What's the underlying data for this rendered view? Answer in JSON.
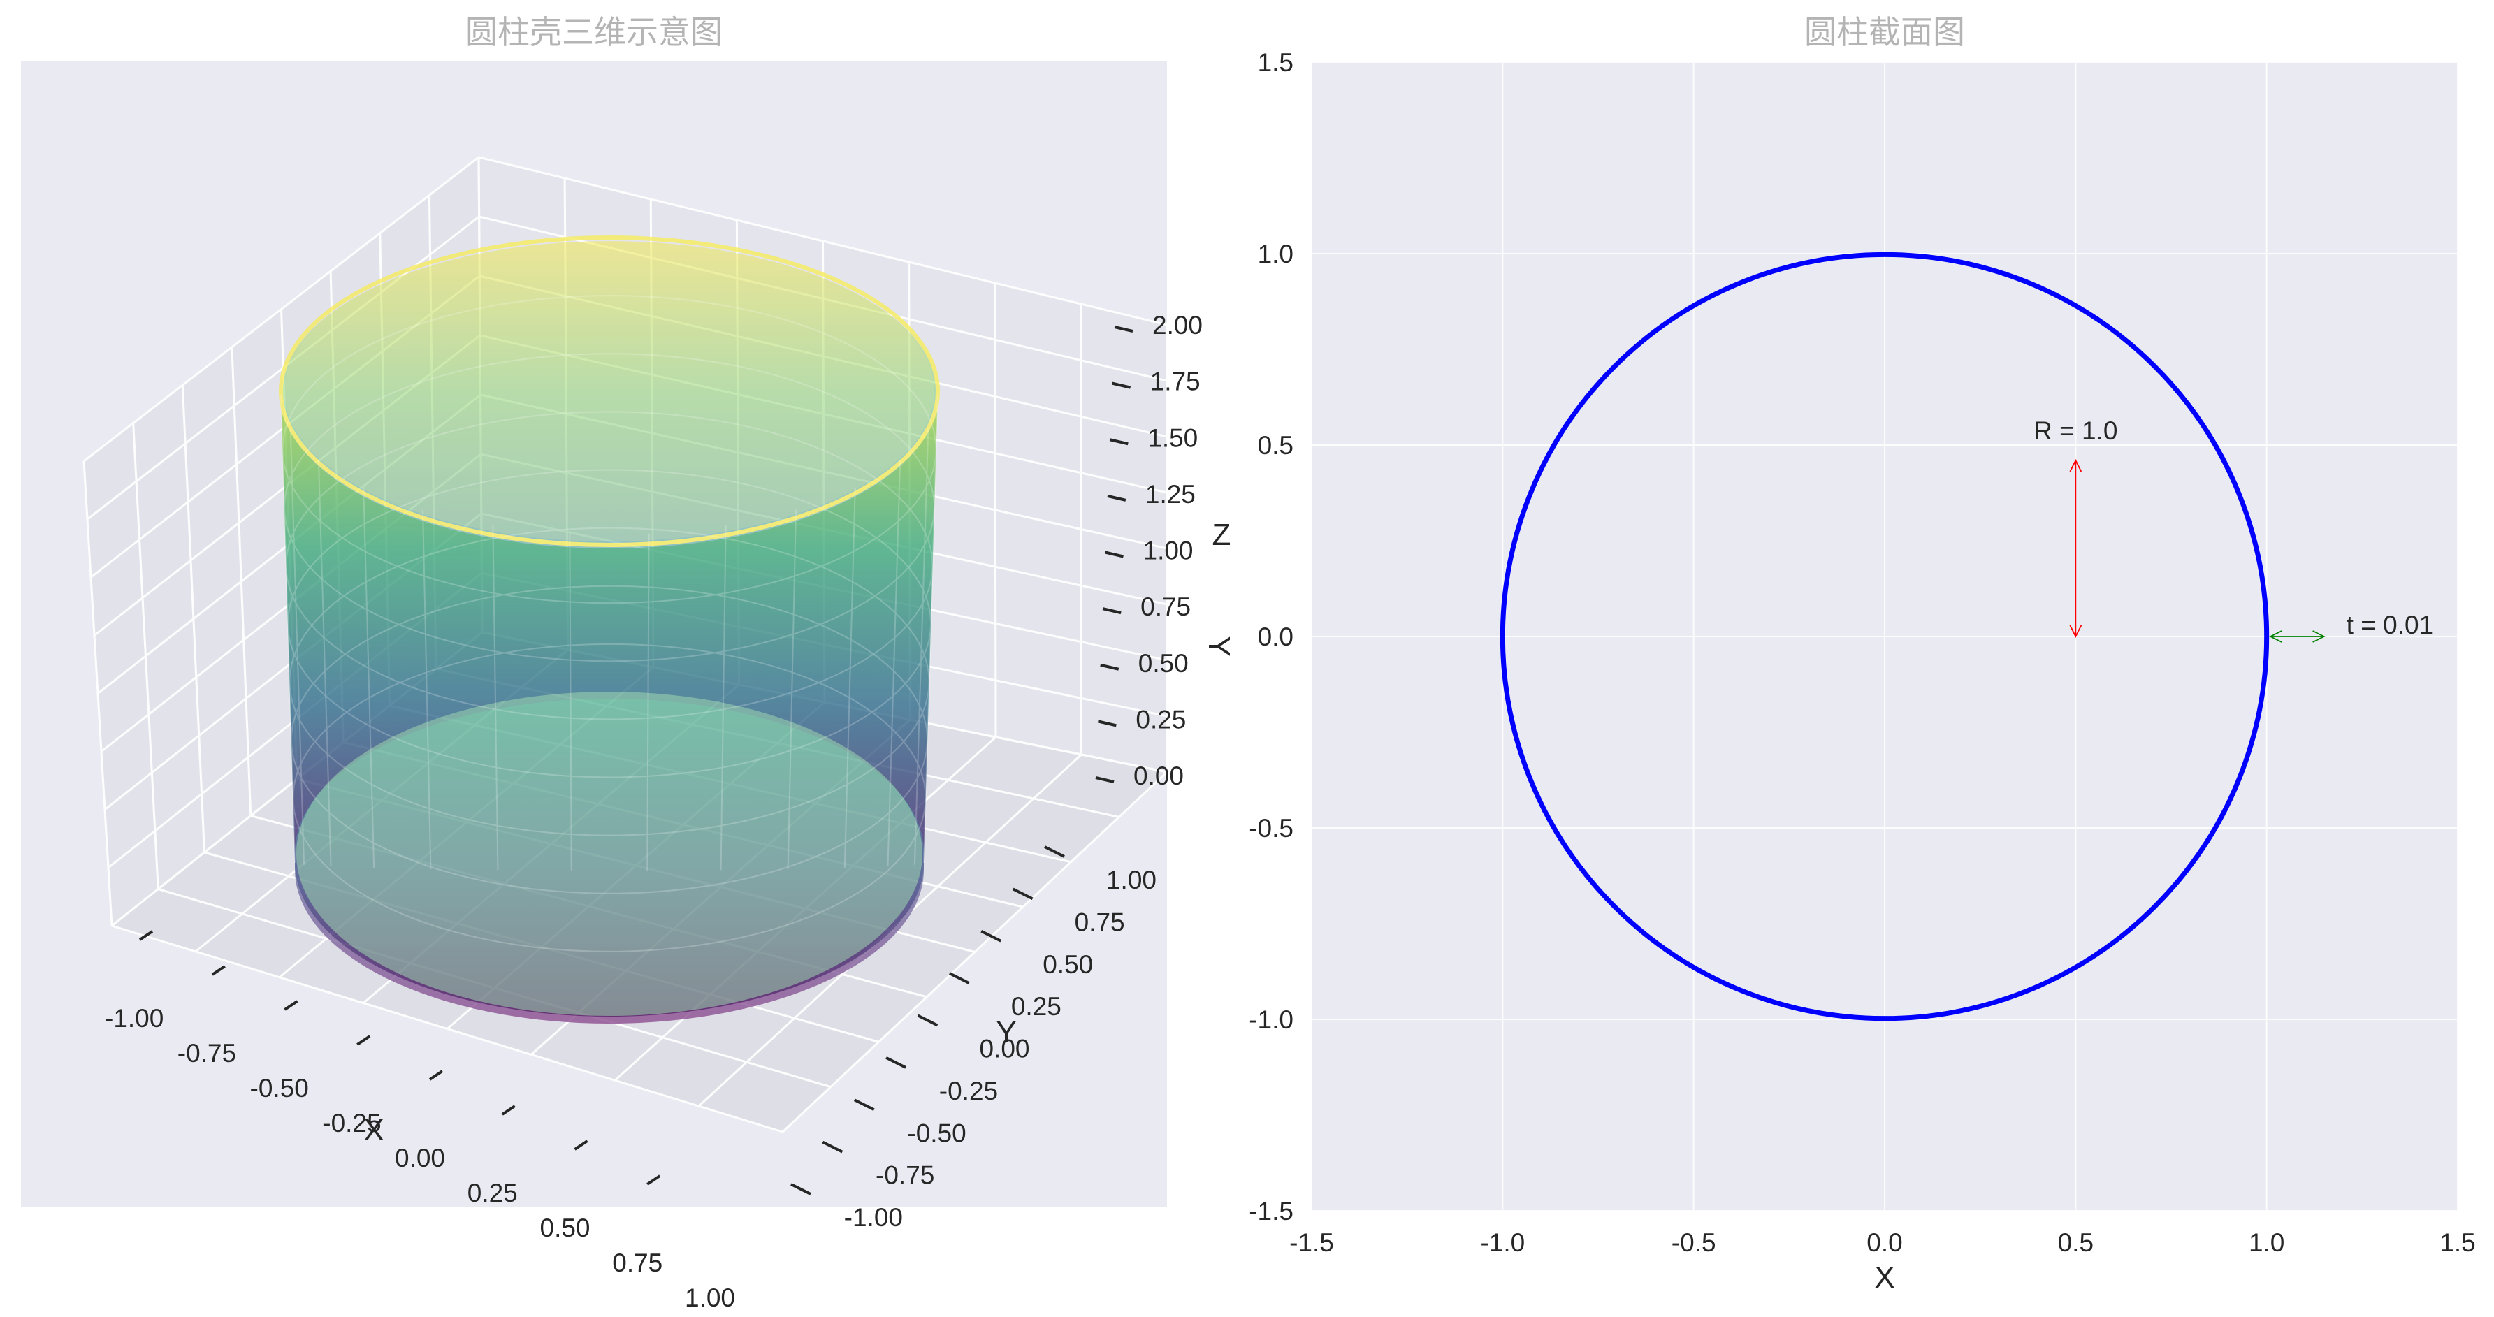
{
  "chart_data": [
    {
      "type": "surface3d",
      "title": "圆柱壳三维示意图",
      "xlabel": "X",
      "ylabel": "Y",
      "zlabel": "Z",
      "stray_label": "Y",
      "colormap": "viridis",
      "surface_alpha": 0.6,
      "radius": 1.0,
      "height": 2.0,
      "x_ticks": [
        "-1.00",
        "-0.75",
        "-0.50",
        "-0.25",
        "0.00",
        "0.25",
        "0.50",
        "0.75",
        "1.00"
      ],
      "y_ticks": [
        "-1.00",
        "-0.75",
        "-0.50",
        "-0.25",
        "0.00",
        "0.25",
        "0.50",
        "0.75",
        "1.00"
      ],
      "z_ticks": [
        "0.00",
        "0.25",
        "0.50",
        "0.75",
        "1.00",
        "1.25",
        "1.50",
        "1.75",
        "2.00"
      ],
      "grid": true
    },
    {
      "type": "line",
      "title": "圆柱截面图",
      "xlabel": "X",
      "ylabel": "",
      "xlim": [
        -1.5,
        1.5
      ],
      "ylim": [
        -1.5,
        1.5
      ],
      "x_ticks": [
        "-1.5",
        "-1.0",
        "-0.5",
        "0.0",
        "0.5",
        "1.0",
        "1.5"
      ],
      "y_ticks": [
        "-1.5",
        "-1.0",
        "-0.5",
        "0.0",
        "0.5",
        "1.0",
        "1.5"
      ],
      "grid": true,
      "series": [
        {
          "shape": "circle",
          "center": [
            0,
            0
          ],
          "radius": 1.0,
          "color": "#0000ff"
        }
      ],
      "annotations": [
        {
          "text": "R = 1.0",
          "kind": "double-arrow",
          "from": [
            0.5,
            0.0
          ],
          "to": [
            0.5,
            0.46
          ],
          "color": "#ff0000"
        },
        {
          "text": "t = 0.01",
          "kind": "double-arrow",
          "from": [
            1.01,
            0.0
          ],
          "to": [
            1.15,
            0.0
          ],
          "color": "#008000"
        }
      ]
    }
  ]
}
